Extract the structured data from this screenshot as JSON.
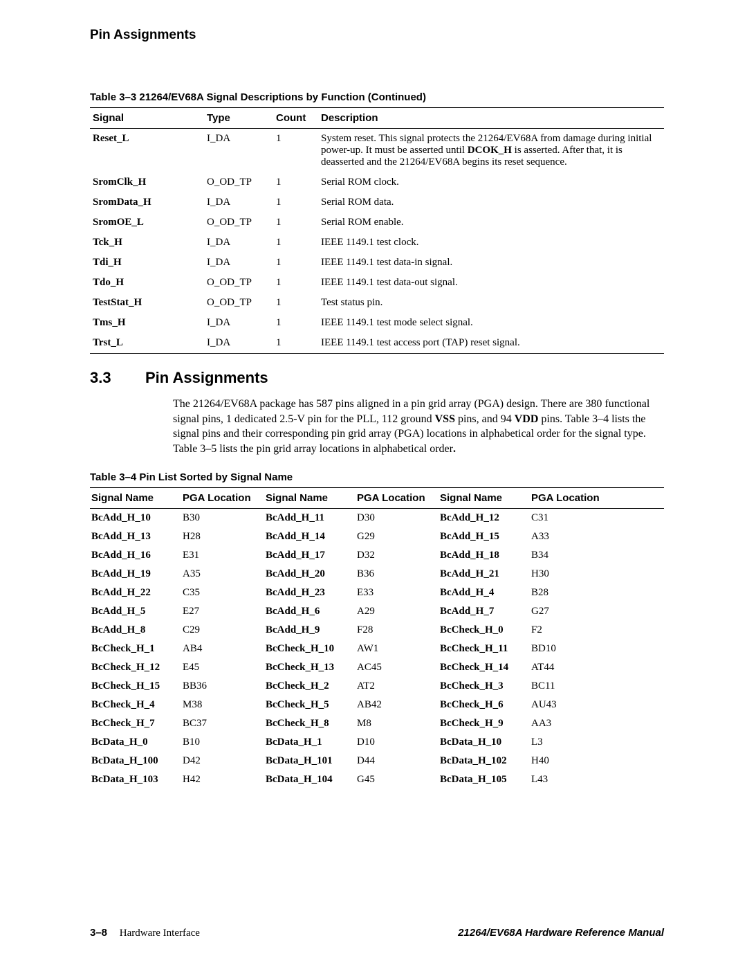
{
  "header": {
    "title": "Pin Assignments"
  },
  "table3_3": {
    "caption": "Table 3–3  21264/EV68A Signal Descriptions by Function (Continued)",
    "columns": [
      "Signal",
      "Type",
      "Count",
      "Description"
    ],
    "rows": [
      {
        "signal": "Reset_L",
        "type": "I_DA",
        "count": "1",
        "desc_pre": "System reset. This signal protects the 21264/EV68A from damage during initial power-up. It must be asserted until ",
        "desc_bold": "DCOK_H",
        "desc_post": " is asserted. After that, it is deasserted and the 21264/EV68A begins its reset sequence."
      },
      {
        "signal": "SromClk_H",
        "type": "O_OD_TP",
        "count": "1",
        "desc": "Serial ROM clock."
      },
      {
        "signal": "SromData_H",
        "type": "I_DA",
        "count": "1",
        "desc": "Serial ROM data."
      },
      {
        "signal": "SromOE_L",
        "type": "O_OD_TP",
        "count": "1",
        "desc": "Serial ROM enable."
      },
      {
        "signal": "Tck_H",
        "type": "I_DA",
        "count": "1",
        "desc": "IEEE 1149.1 test clock."
      },
      {
        "signal": "Tdi_H",
        "type": "I_DA",
        "count": "1",
        "desc": "IEEE 1149.1 test data-in signal."
      },
      {
        "signal": "Tdo_H",
        "type": "O_OD_TP",
        "count": "1",
        "desc": "IEEE 1149.1 test data-out signal."
      },
      {
        "signal": "TestStat_H",
        "type": "O_OD_TP",
        "count": "1",
        "desc": "Test status pin."
      },
      {
        "signal": "Tms_H",
        "type": "I_DA",
        "count": "1",
        "desc": "IEEE 1149.1 test mode select signal."
      },
      {
        "signal": "Trst_L",
        "type": "I_DA",
        "count": "1",
        "desc": "IEEE 1149.1 test access port (TAP) reset signal."
      }
    ]
  },
  "section": {
    "num": "3.3",
    "title": "Pin Assignments",
    "para_parts": {
      "p1": "The 21264/EV68A package has 587 pins aligned in a pin grid array (PGA) design. There are 380 functional signal pins, 1 dedicated 2.5-V pin for the PLL, 112 ground ",
      "b1": "VSS",
      "p2": " pins, and 94 ",
      "b2": "VDD",
      "p3": " pins. Table 3–4 lists the  signal pins and their corresponding pin grid array (PGA) locations in alphabetical order for the signal type. Table 3–5 lists the pin grid array locations in alphabetical order",
      "b3": ".",
      "p4": ""
    }
  },
  "table3_4": {
    "caption": "Table 3–4  Pin List Sorted by Signal Name",
    "columns": [
      "Signal Name",
      "PGA Location",
      "Signal Name",
      "PGA Location",
      "Signal Name",
      "PGA Location"
    ],
    "rows": [
      [
        "BcAdd_H_10",
        "B30",
        "BcAdd_H_11",
        "D30",
        "BcAdd_H_12",
        "C31"
      ],
      [
        "BcAdd_H_13",
        "H28",
        "BcAdd_H_14",
        "G29",
        "BcAdd_H_15",
        "A33"
      ],
      [
        "BcAdd_H_16",
        "E31",
        "BcAdd_H_17",
        "D32",
        "BcAdd_H_18",
        "B34"
      ],
      [
        "BcAdd_H_19",
        "A35",
        "BcAdd_H_20",
        "B36",
        "BcAdd_H_21",
        "H30"
      ],
      [
        "BcAdd_H_22",
        "C35",
        "BcAdd_H_23",
        "E33",
        "BcAdd_H_4",
        "B28"
      ],
      [
        "BcAdd_H_5",
        "E27",
        "BcAdd_H_6",
        "A29",
        "BcAdd_H_7",
        "G27"
      ],
      [
        "BcAdd_H_8",
        "C29",
        "BcAdd_H_9",
        "F28",
        "BcCheck_H_0",
        "F2"
      ],
      [
        "BcCheck_H_1",
        "AB4",
        "BcCheck_H_10",
        "AW1",
        "BcCheck_H_11",
        "BD10"
      ],
      [
        "BcCheck_H_12",
        "E45",
        "BcCheck_H_13",
        "AC45",
        "BcCheck_H_14",
        "AT44"
      ],
      [
        "BcCheck_H_15",
        "BB36",
        "BcCheck_H_2",
        "AT2",
        "BcCheck_H_3",
        "BC11"
      ],
      [
        "BcCheck_H_4",
        "M38",
        "BcCheck_H_5",
        "AB42",
        "BcCheck_H_6",
        "AU43"
      ],
      [
        "BcCheck_H_7",
        "BC37",
        "BcCheck_H_8",
        "M8",
        "BcCheck_H_9",
        "AA3"
      ],
      [
        "BcData_H_0",
        "B10",
        "BcData_H_1",
        "D10",
        "BcData_H_10",
        "L3"
      ],
      [
        "BcData_H_100",
        "D42",
        "BcData_H_101",
        "D44",
        "BcData_H_102",
        "H40"
      ],
      [
        "BcData_H_103",
        "H42",
        "BcData_H_104",
        "G45",
        "BcData_H_105",
        "L43"
      ]
    ]
  },
  "footer": {
    "page": "3–8",
    "section": "Hardware Interface",
    "manual": "21264/EV68A Hardware Reference Manual"
  }
}
